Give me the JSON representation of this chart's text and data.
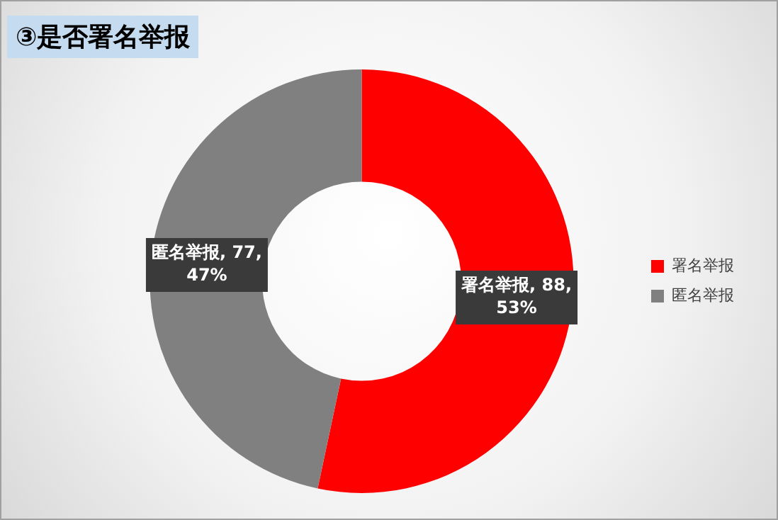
{
  "chart_data": {
    "type": "donut",
    "title": "③是否署名举报",
    "categories": [
      "署名举报",
      "匿名举报"
    ],
    "values": [
      88,
      77
    ],
    "colors": [
      "#ff0000",
      "#808080"
    ],
    "value_labels": [
      "署名举报, 88, 53%",
      "匿名举报, 77, 47%"
    ],
    "legend": "right"
  }
}
